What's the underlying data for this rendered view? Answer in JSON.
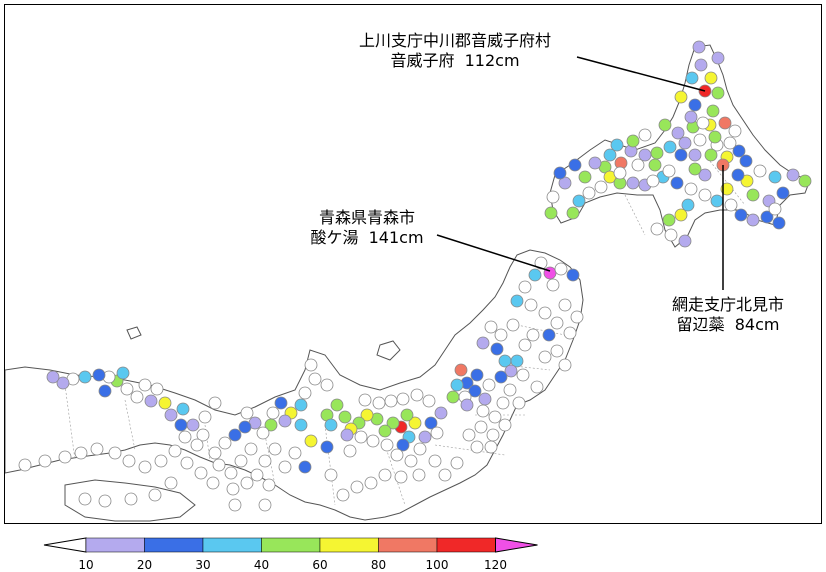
{
  "callouts": [
    {
      "id": "kamikawa",
      "line1": "上川支庁中川郡音威子府村",
      "line2": "音威子府",
      "value": "112cm"
    },
    {
      "id": "aomori",
      "line1": "青森県青森市",
      "line2": "酸ケ湯",
      "value": "141cm"
    },
    {
      "id": "abashiri",
      "line1": "網走支庁北見市",
      "line2": "留辺蘂",
      "value": "84cm"
    }
  ],
  "legend": {
    "ticks": [
      "10",
      "20",
      "30",
      "40",
      "60",
      "80",
      "100",
      "120"
    ],
    "colors": {
      "lt10": "#ffffff",
      "b10_20": "#b4aaee",
      "b20_30": "#3a6fe6",
      "b30_40": "#5ac8f0",
      "b40_60": "#98e65a",
      "b60_80": "#f5f532",
      "b80_100": "#f07864",
      "b100_120": "#f02828",
      "ge120": "#f050e6"
    }
  },
  "stations": [
    {
      "name": "音威子府",
      "snow_cm": 112
    },
    {
      "name": "酸ケ湯",
      "snow_cm": 141
    },
    {
      "name": "留辺蘂",
      "snow_cm": 84
    }
  ]
}
